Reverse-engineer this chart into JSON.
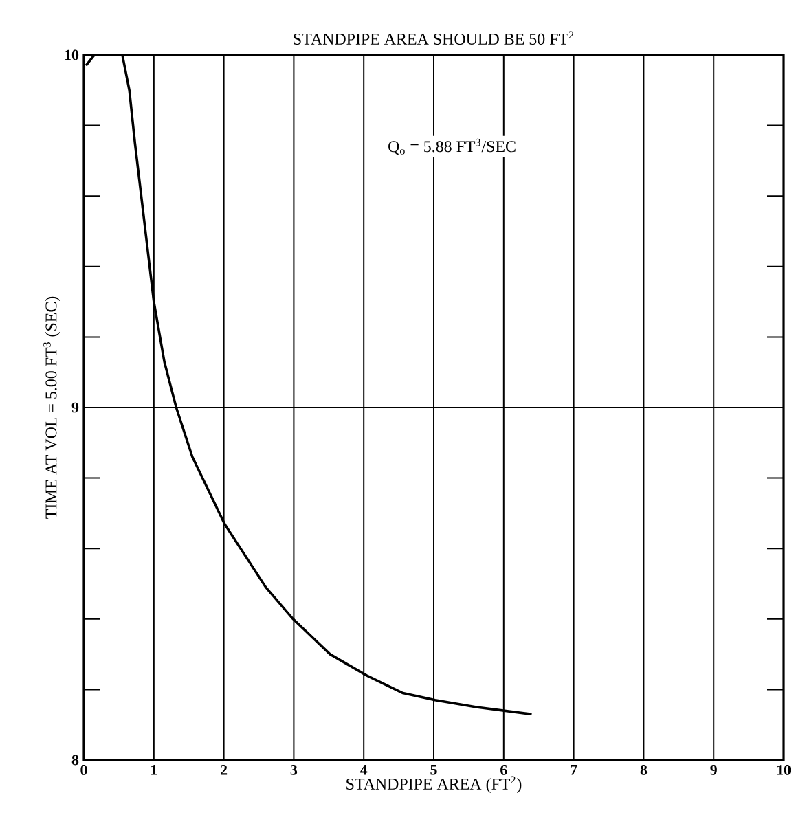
{
  "chart_data": {
    "type": "line",
    "title": "STANDPIPE AREA SHOULD BE  50 FT$^{2}$",
    "xlabel": "STANDPIPE AREA (FT$^{2}$)",
    "ylabel": "TIME AT VOL = 5.00 FT$^{3}$ (SEC)",
    "annotations": [
      "Q$_{o}$ = 5.88 FT$^{3}$/SEC"
    ],
    "xlim": [
      0,
      10
    ],
    "ylim": [
      8,
      10
    ],
    "xticks": [
      0,
      1,
      2,
      3,
      4,
      5,
      6,
      7,
      8,
      9,
      10
    ],
    "yticks": [
      8,
      {
        "value": 8.2,
        "label": null
      },
      {
        "value": 8.4,
        "label": null
      },
      {
        "value": 8.6,
        "label": null
      },
      {
        "value": 8.8,
        "label": null
      },
      9,
      {
        "value": 9.2,
        "label": null
      },
      {
        "value": 9.4,
        "label": null
      },
      {
        "value": 9.6,
        "label": null
      },
      {
        "value": 9.8,
        "label": null
      },
      10
    ],
    "grid": true,
    "marker": "none",
    "line_style": "solid",
    "series": [
      {
        "color": "#000000",
        "x": [
          0.03,
          0.15,
          0.55,
          0.65,
          0.73,
          0.85,
          1.0,
          1.15,
          1.32,
          1.55,
          2.01,
          2.6,
          2.99,
          3.52,
          4.04,
          4.56,
          5.02,
          5.61,
          6.4
        ],
        "values": [
          9.97,
          10.0,
          10.0,
          9.9,
          9.75,
          9.55,
          9.3,
          9.13,
          9.0,
          8.86,
          8.67,
          8.49,
          8.4,
          8.3,
          8.24,
          8.19,
          8.17,
          8.15,
          8.13
        ]
      }
    ]
  }
}
